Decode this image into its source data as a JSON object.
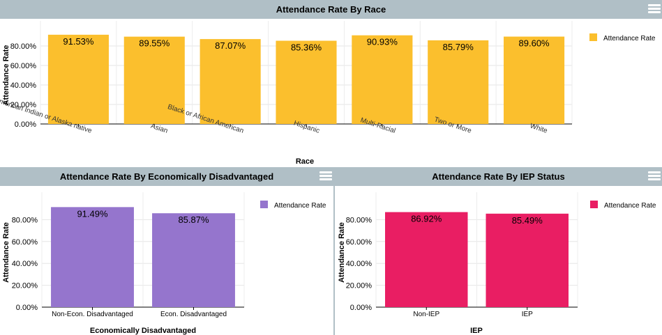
{
  "colors": {
    "race": "#fbbf2d",
    "econ": "#9575cd",
    "iep": "#e91e63"
  },
  "icons": {
    "menu": "hamburger-menu-icon"
  },
  "charts": [
    {
      "key": "race",
      "title": "Attendance Rate By Race",
      "xlabel": "Race",
      "ylabel": "Attendance Rate",
      "legend": "Attendance Rate"
    },
    {
      "key": "econ",
      "title": "Attendance Rate By Economically Disadvantaged",
      "xlabel": "Economically Disadvantaged",
      "ylabel": "Attendance Rate",
      "legend": "Attendance Rate"
    },
    {
      "key": "iep",
      "title": "Attendance Rate By IEP Status",
      "xlabel": "IEP",
      "ylabel": "Attendance Rate",
      "legend": "Attendance Rate"
    }
  ],
  "chart_data": [
    {
      "type": "bar",
      "title": "Attendance Rate By Race",
      "xlabel": "Race",
      "ylabel": "Attendance Rate",
      "categories": [
        "American Indian or Alaska native",
        "Asian",
        "Black or African American",
        "Hispanic",
        "Multi-Racial",
        "Two or More",
        "White"
      ],
      "values": [
        91.53,
        89.55,
        87.07,
        85.36,
        90.93,
        85.79,
        89.6
      ],
      "data_labels": [
        "91.53%",
        "89.55%",
        "87.07%",
        "85.36%",
        "90.93%",
        "85.79%",
        "89.60%"
      ],
      "yticks": [
        "0.00%",
        "20.00%",
        "40.00%",
        "60.00%",
        "80.00%"
      ],
      "ylim": [
        0,
        100
      ],
      "legend": "top-right",
      "grid": true
    },
    {
      "type": "bar",
      "title": "Attendance Rate By Economically Disadvantaged",
      "xlabel": "Economically Disadvantaged",
      "ylabel": "Attendance Rate",
      "categories": [
        "Non-Econ. Disadvantaged",
        "Econ. Disadvantaged"
      ],
      "values": [
        91.49,
        85.87
      ],
      "data_labels": [
        "91.49%",
        "85.87%"
      ],
      "yticks": [
        "0.00%",
        "20.00%",
        "40.00%",
        "60.00%",
        "80.00%"
      ],
      "ylim": [
        0,
        100
      ],
      "legend": "top-right",
      "grid": true
    },
    {
      "type": "bar",
      "title": "Attendance Rate By IEP Status",
      "xlabel": "IEP",
      "ylabel": "Attendance Rate",
      "categories": [
        "Non-IEP",
        "IEP"
      ],
      "values": [
        86.92,
        85.49
      ],
      "data_labels": [
        "86.92%",
        "85.49%"
      ],
      "yticks": [
        "0.00%",
        "20.00%",
        "40.00%",
        "60.00%",
        "80.00%"
      ],
      "ylim": [
        0,
        100
      ],
      "legend": "top-right",
      "grid": true
    }
  ]
}
